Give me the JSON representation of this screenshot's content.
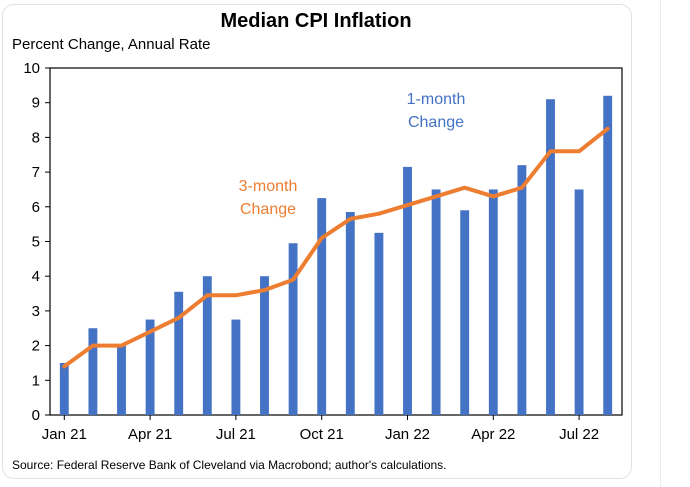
{
  "chart_data": {
    "type": "bar+line",
    "title": "Median CPI Inflation",
    "subtitle": "Percent Change, Annual Rate",
    "xlabel": "",
    "ylabel": "Percent Change, Annual Rate",
    "ylim": [
      0,
      10
    ],
    "yticks": [
      "0",
      "1",
      "2",
      "3",
      "4",
      "5",
      "6",
      "7",
      "8",
      "9",
      "10"
    ],
    "categories": [
      "Jan 21",
      "Feb 21",
      "Mar 21",
      "Apr 21",
      "May 21",
      "Jun 21",
      "Jul 21",
      "Aug 21",
      "Sep 21",
      "Oct 21",
      "Nov 21",
      "Dec 21",
      "Jan 22",
      "Feb 22",
      "Mar 22",
      "Apr 22",
      "May 22",
      "Jun 22",
      "Jul 22",
      "Aug 22"
    ],
    "xtick_labels": [
      {
        "index": 0,
        "label": "Jan 21"
      },
      {
        "index": 3,
        "label": "Apr 21"
      },
      {
        "index": 6,
        "label": "Jul 21"
      },
      {
        "index": 9,
        "label": "Oct 21"
      },
      {
        "index": 12,
        "label": "Jan 22"
      },
      {
        "index": 15,
        "label": "Apr 22"
      },
      {
        "index": 18,
        "label": "Jul 22"
      }
    ],
    "series": [
      {
        "name": "1-month Change",
        "kind": "bar",
        "color": "#4472C4",
        "values": [
          1.5,
          2.5,
          2.0,
          2.75,
          3.55,
          4.0,
          2.75,
          4.0,
          4.95,
          6.25,
          5.85,
          5.25,
          7.15,
          6.5,
          5.9,
          6.5,
          7.2,
          9.1,
          6.5,
          9.2
        ]
      },
      {
        "name": "3-month Change",
        "kind": "line",
        "color": "#ED7D31",
        "values": [
          1.4,
          2.0,
          2.0,
          2.4,
          2.8,
          3.45,
          3.45,
          3.6,
          3.9,
          5.1,
          5.65,
          5.8,
          6.05,
          6.3,
          6.55,
          6.3,
          6.55,
          7.6,
          7.6,
          8.25
        ]
      }
    ],
    "annotations": {
      "one_month": [
        "1-month",
        "Change"
      ],
      "three_month": [
        "3-month",
        "Change"
      ]
    },
    "source": "Source: Federal Reserve Bank of Cleveland via Macrobond; author's calculations."
  }
}
